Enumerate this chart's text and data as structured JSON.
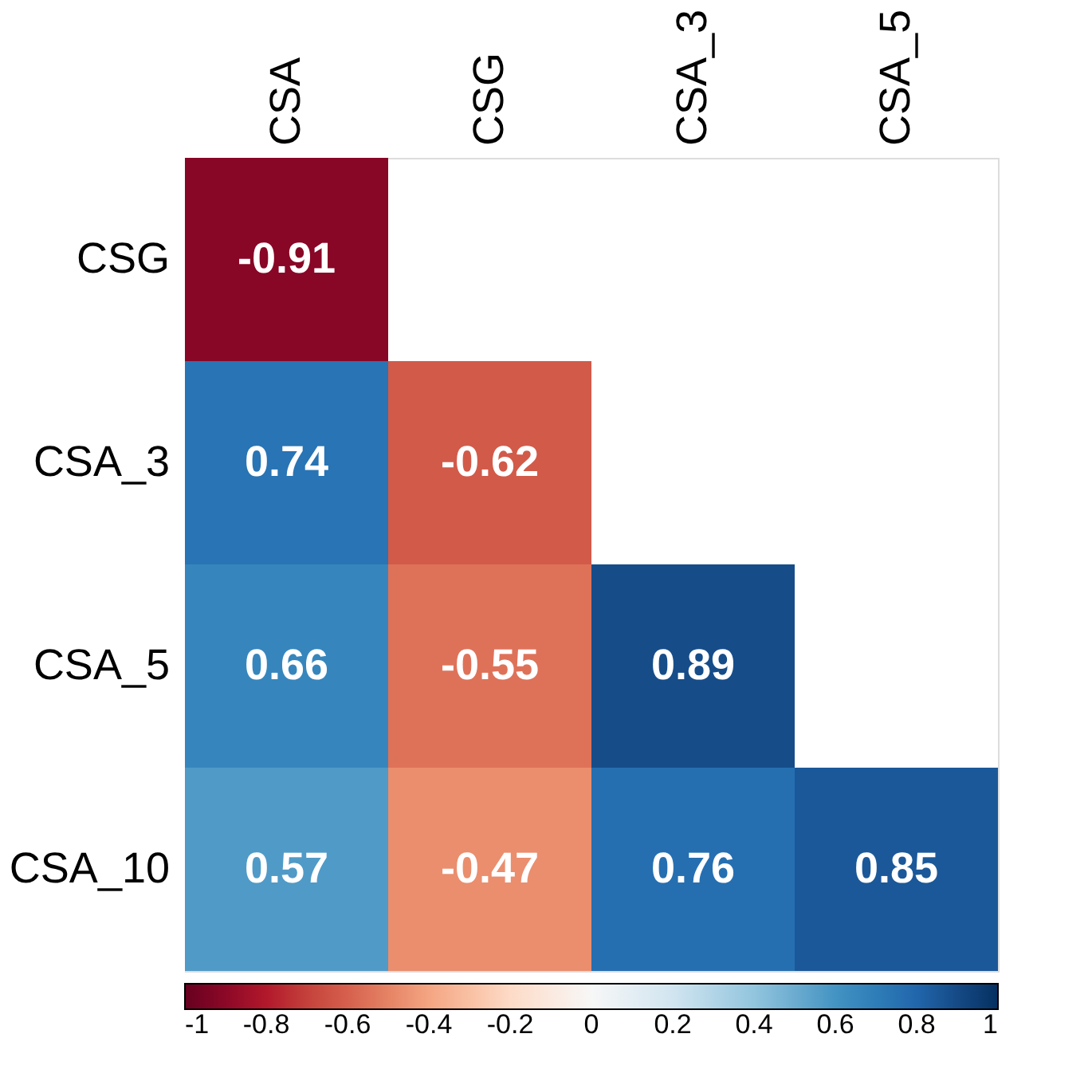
{
  "chart_data": {
    "type": "heatmap",
    "categories": [
      "CSA",
      "CSG",
      "CSA_3",
      "CSA_5"
    ],
    "y_categories": [
      "CSG",
      "CSA_3",
      "CSA_5",
      "CSA_10"
    ],
    "cells": [
      [
        -0.91,
        null,
        null,
        null
      ],
      [
        0.74,
        -0.62,
        null,
        null
      ],
      [
        0.66,
        -0.55,
        0.89,
        null
      ],
      [
        0.57,
        -0.47,
        0.76,
        0.85
      ]
    ],
    "clim": [
      -1,
      1
    ],
    "cticks": [
      -1,
      -0.8,
      -0.6,
      -0.4,
      -0.2,
      0,
      0.2,
      0.4,
      0.6,
      0.8,
      1
    ],
    "data_labels": true
  }
}
